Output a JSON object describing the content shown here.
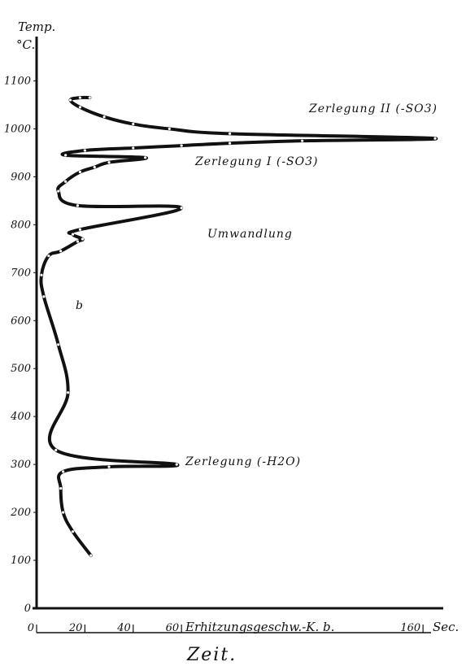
{
  "chart_data": {
    "type": "line",
    "title": "",
    "ylabel": "Temp.",
    "yunit": "°C.",
    "xlabel": "Zeit.",
    "xunit": "Sec.",
    "x_axis_text": "Erhitzungsgeschw.-K. b.",
    "ylim": [
      0,
      1150
    ],
    "xlim": [
      0,
      165
    ],
    "y_ticks": [
      "0",
      "100",
      "200",
      "300",
      "400",
      "500",
      "600",
      "700",
      "800",
      "900",
      "1000",
      "1100"
    ],
    "x_ticks": [
      "0",
      "20",
      "40",
      "60",
      "160"
    ],
    "grid": false,
    "series": [
      {
        "name": "b",
        "x": [
          22.5,
          15,
          11,
          10,
          11,
          30,
          58,
          8,
          13,
          9,
          3,
          2,
          5,
          10,
          17,
          19,
          15,
          18,
          60,
          17,
          9,
          12,
          18,
          24,
          30,
          45,
          12,
          20,
          40,
          60,
          80,
          110,
          165,
          80,
          55,
          40,
          28,
          18,
          14,
          18,
          22
        ],
        "y": [
          110,
          160,
          200,
          250,
          285,
          295,
          300,
          330,
          450,
          550,
          650,
          695,
          735,
          745,
          765,
          770,
          780,
          790,
          835,
          840,
          870,
          890,
          910,
          920,
          930,
          940,
          945,
          955,
          960,
          965,
          970,
          975,
          980,
          990,
          1000,
          1010,
          1025,
          1045,
          1060,
          1065,
          1065
        ]
      }
    ],
    "annotations": [
      "Zerlegung (-H2O)",
      "Umwandlung",
      "Zerlegung I (-SO3)",
      "Zerlegung II (-SO3)"
    ],
    "curve_label": "b"
  }
}
